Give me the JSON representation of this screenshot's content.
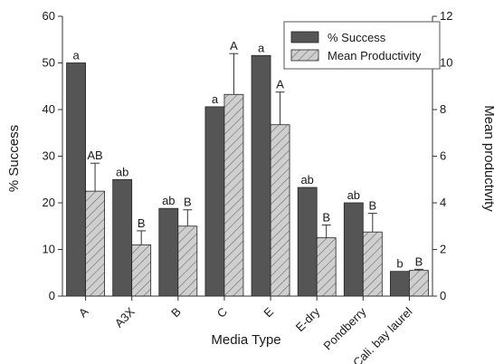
{
  "chart_data": {
    "type": "bar",
    "xlabel": "Media Type",
    "ylabel": "% Success",
    "y2label": "Mean productivity",
    "ylim": [
      0,
      60
    ],
    "y2lim": [
      0,
      12
    ],
    "yticks": [
      0,
      10,
      20,
      30,
      40,
      50,
      60
    ],
    "y2ticks": [
      0,
      2,
      4,
      6,
      8,
      10,
      12
    ],
    "categories": [
      "A",
      "A3X",
      "B",
      "C",
      "E",
      "E-dry",
      "Pondberry",
      "Cali. bay laurel"
    ],
    "legend_position": "top-right",
    "series": [
      {
        "name": "% Success",
        "axis": "left",
        "color": "#555555",
        "pattern": "solid",
        "values": [
          50.0,
          25.0,
          18.8,
          40.6,
          51.6,
          23.3,
          20.0,
          5.3
        ],
        "labels": [
          "a",
          "ab",
          "ab",
          "a",
          "a",
          "ab",
          "ab",
          "b"
        ]
      },
      {
        "name": "Mean Productivity",
        "axis": "right",
        "color": "#c8c8c8",
        "pattern": "hatched",
        "values": [
          4.5,
          2.2,
          3.0,
          8.65,
          7.35,
          2.5,
          2.75,
          1.1
        ],
        "errors": [
          1.2,
          0.6,
          0.7,
          1.75,
          1.4,
          0.55,
          0.8,
          0.05
        ],
        "labels": [
          "AB",
          "B",
          "B",
          "A",
          "A",
          "B",
          "B",
          "B"
        ]
      }
    ]
  }
}
